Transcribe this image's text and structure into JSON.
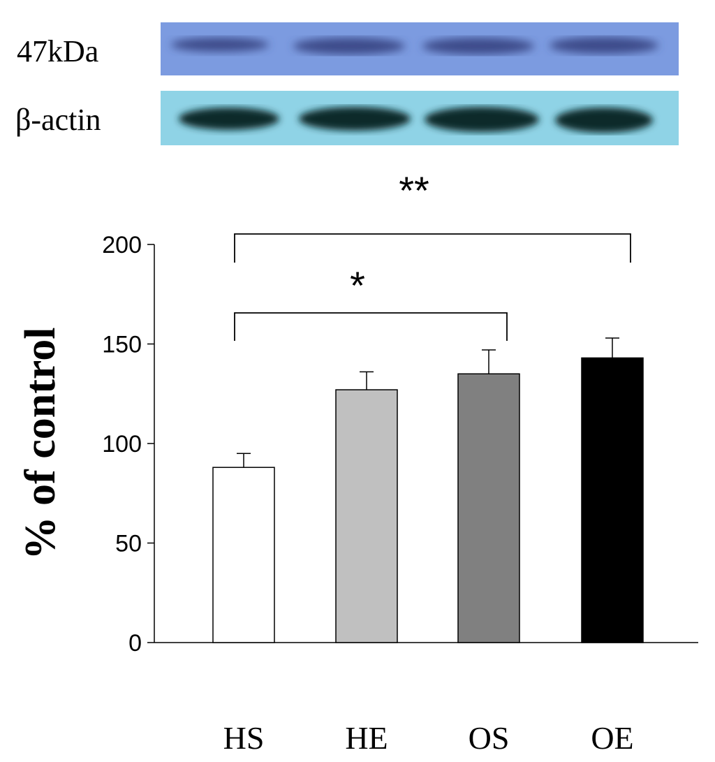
{
  "blot": {
    "band1_label": "47kDa",
    "band2_label": "β-actin",
    "band1_panel_color": "#7c9be0",
    "band2_panel_color": "#8fd3e6"
  },
  "chart_data": {
    "type": "bar",
    "categories": [
      "HS",
      "HE",
      "OS",
      "OE"
    ],
    "values": [
      88,
      127,
      135,
      143
    ],
    "errors": [
      7,
      9,
      12,
      10
    ],
    "colors": [
      "#ffffff",
      "#c0c0c0",
      "#808080",
      "#000000"
    ],
    "ylabel": "% of control",
    "ylim": [
      0,
      200
    ],
    "yticks": [
      0,
      50,
      100,
      150,
      200
    ],
    "significance": [
      {
        "from": "HS",
        "to": "OE",
        "label": "**"
      },
      {
        "from": "HS",
        "to": "OS",
        "label": "*"
      }
    ]
  }
}
